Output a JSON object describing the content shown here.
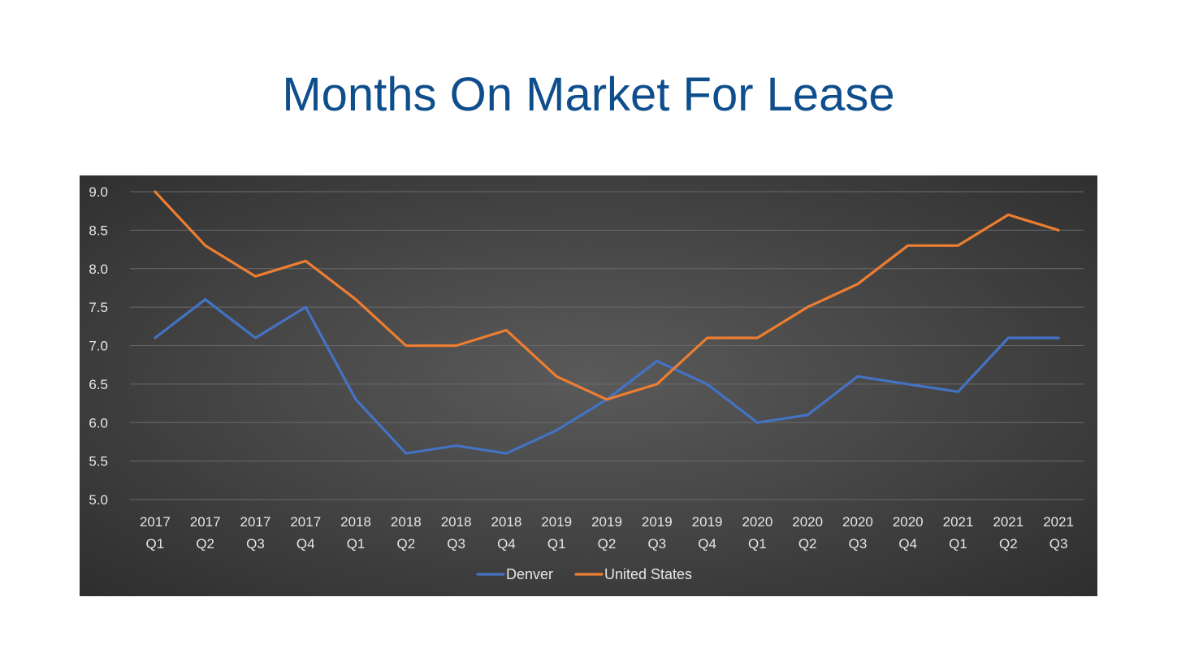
{
  "title": "Months On Market For Lease",
  "colors": {
    "title": "#0f4e8c",
    "denver": "#4472c4",
    "united_states": "#ed7d31",
    "text": "#e6e6e6",
    "grid": "#6a6a6a"
  },
  "chart_data": {
    "type": "line",
    "categories": [
      [
        "2017",
        "Q1"
      ],
      [
        "2017",
        "Q2"
      ],
      [
        "2017",
        "Q3"
      ],
      [
        "2017",
        "Q4"
      ],
      [
        "2018",
        "Q1"
      ],
      [
        "2018",
        "Q2"
      ],
      [
        "2018",
        "Q3"
      ],
      [
        "2018",
        "Q4"
      ],
      [
        "2019",
        "Q1"
      ],
      [
        "2019",
        "Q2"
      ],
      [
        "2019",
        "Q3"
      ],
      [
        "2019",
        "Q4"
      ],
      [
        "2020",
        "Q1"
      ],
      [
        "2020",
        "Q2"
      ],
      [
        "2020",
        "Q3"
      ],
      [
        "2020",
        "Q4"
      ],
      [
        "2021",
        "Q1"
      ],
      [
        "2021",
        "Q2"
      ],
      [
        "2021",
        "Q3"
      ]
    ],
    "series": [
      {
        "name": "Denver",
        "color": "#4472c4",
        "values": [
          7.1,
          7.6,
          7.1,
          7.5,
          6.3,
          5.6,
          5.7,
          5.6,
          5.9,
          6.3,
          6.8,
          6.5,
          6.0,
          6.1,
          6.6,
          6.5,
          6.4,
          7.1,
          7.1
        ]
      },
      {
        "name": "United States",
        "color": "#ed7d31",
        "values": [
          9.0,
          8.3,
          7.9,
          8.1,
          7.6,
          7.0,
          7.0,
          7.2,
          6.6,
          6.3,
          6.5,
          7.1,
          7.1,
          7.5,
          7.8,
          8.3,
          8.3,
          8.7,
          8.5
        ]
      }
    ],
    "yticks": [
      "9.0",
      "8.5",
      "8.0",
      "7.5",
      "7.0",
      "6.5",
      "6.0",
      "5.5",
      "5.0"
    ],
    "ylim": [
      5.0,
      9.0
    ],
    "xlabel": "",
    "ylabel": "",
    "grid": true,
    "legend": "bottom"
  }
}
